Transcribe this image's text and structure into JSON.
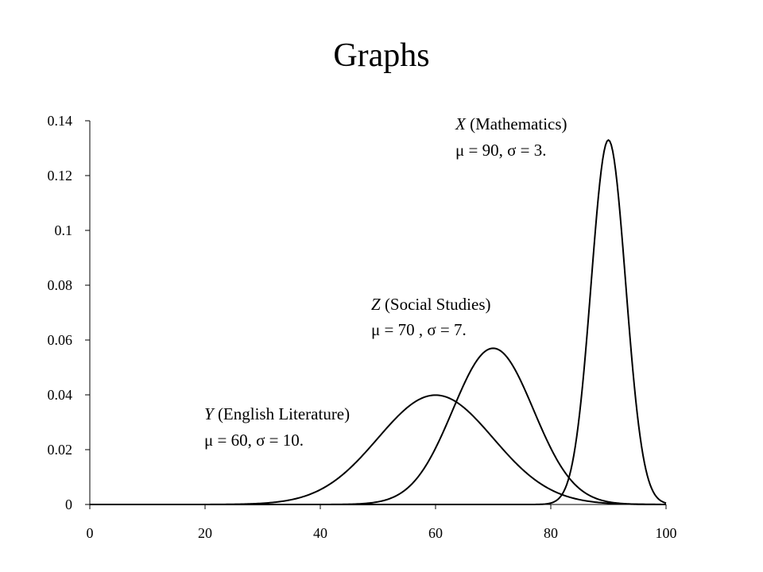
{
  "header": {
    "title": "Graphs"
  },
  "chart_data": {
    "type": "line",
    "title": "",
    "xlabel": "",
    "ylabel": "",
    "xlim": [
      0,
      100
    ],
    "ylim": [
      0,
      0.14
    ],
    "x_ticks": [
      0,
      20,
      40,
      60,
      80,
      100
    ],
    "y_ticks": [
      0,
      0.02,
      0.04,
      0.06,
      0.08,
      0.1,
      0.12,
      0.14
    ],
    "x_tick_labels": [
      "0",
      "20",
      "40",
      "60",
      "80",
      "100"
    ],
    "y_tick_labels": [
      "0",
      "0.02",
      "0.04",
      "0.06",
      "0.08",
      "0.1",
      "0.12",
      "0.14"
    ],
    "grid": false,
    "legend": "none",
    "series": [
      {
        "mean": 60,
        "sd": 10,
        "annotation": {
          "symbol": "Y",
          "subject": "(English Literature)",
          "mu_text": "= 60,",
          "sigma_text": "= 10."
        }
      },
      {
        "mean": 70,
        "sd": 7,
        "annotation": {
          "symbol": "Z",
          "subject": "(Social Studies)",
          "mu_text": "= 70 ,",
          "sigma_text": "= 7."
        }
      },
      {
        "mean": 90,
        "sd": 3,
        "annotation": {
          "symbol": "X",
          "subject": "(Mathematics)",
          "mu_text": "= 90,",
          "sigma_text": "= 3."
        }
      }
    ],
    "symbols": {
      "mu": "μ",
      "sigma": "σ"
    },
    "line_color": "#000000"
  }
}
